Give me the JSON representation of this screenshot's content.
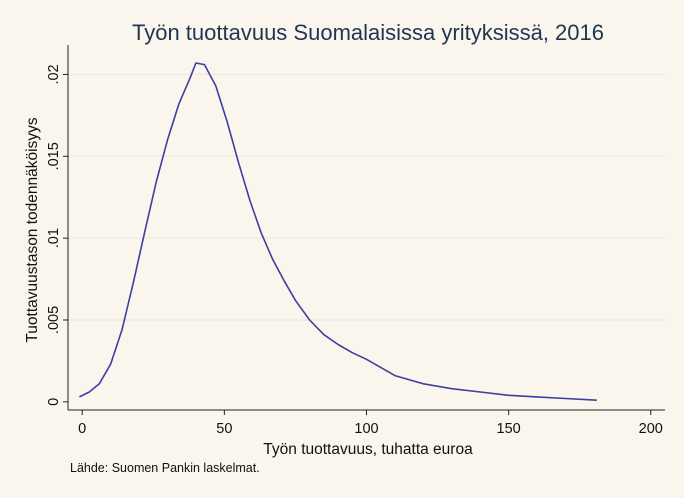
{
  "chart_data": {
    "type": "line",
    "title": "Työn tuottavuus Suomalaisissa yrityksissä, 2016",
    "xlabel": "Työn tuottavuus, tuhatta euroa",
    "ylabel": "Tuottavuustason todennäköisyys",
    "xlim": [
      -5,
      205
    ],
    "ylim": [
      -0.0005,
      0.0218
    ],
    "grid": true,
    "x_ticks": [
      0,
      50,
      100,
      150,
      200
    ],
    "x_tick_labels": [
      "0",
      "50",
      "100",
      "150",
      "200"
    ],
    "y_ticks": [
      0,
      0.005,
      0.01,
      0.015,
      0.02
    ],
    "y_tick_labels": [
      "0",
      ".005",
      ".01",
      ".015",
      ".02"
    ],
    "series": [
      {
        "color": "#3e3ea0",
        "x": [
          -1,
          2.5,
          6,
          10,
          14,
          18,
          22,
          26,
          30,
          34,
          38,
          40,
          43,
          47,
          51,
          55,
          59,
          63,
          67,
          71,
          75,
          80,
          85,
          90,
          95,
          100,
          105,
          110,
          120,
          130,
          140,
          150,
          160,
          170,
          181
        ],
        "y": [
          0.0003,
          0.0006,
          0.0011,
          0.0023,
          0.0044,
          0.0073,
          0.0104,
          0.0134,
          0.016,
          0.0182,
          0.0198,
          0.0207,
          0.0206,
          0.0193,
          0.0171,
          0.0146,
          0.0123,
          0.0103,
          0.0087,
          0.0074,
          0.0062,
          0.005,
          0.0041,
          0.0035,
          0.003,
          0.0026,
          0.0021,
          0.0016,
          0.0011,
          0.0008,
          0.0006,
          0.0004,
          0.0003,
          0.0002,
          0.0001
        ]
      }
    ]
  },
  "footnote": "Lähde: Suomen Pankin laskelmat."
}
